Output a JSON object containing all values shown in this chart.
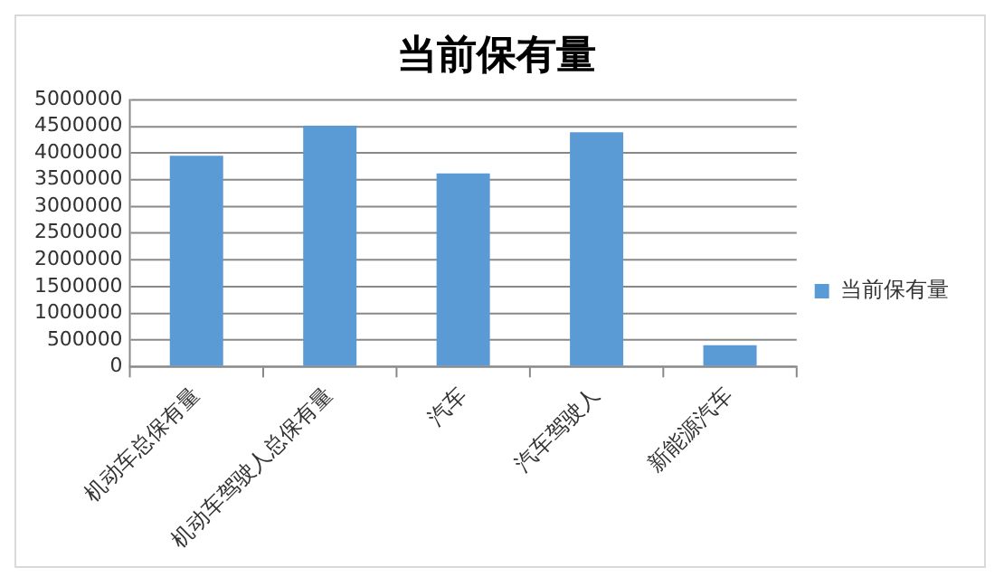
{
  "chart_data": {
    "type": "bar",
    "title": "当前保有量",
    "categories": [
      "机动车总保有量",
      "机动车驾驶人总保有量",
      "汽车",
      "汽车驾驶人",
      "新能源汽车"
    ],
    "series": [
      {
        "name": "当前保有量",
        "color": "#5b9bd5",
        "values": [
          3950000,
          4510000,
          3620000,
          4390000,
          400000
        ]
      }
    ],
    "ylim": [
      0,
      5000000
    ],
    "yticks": [
      0,
      500000,
      1000000,
      1500000,
      2000000,
      2500000,
      3000000,
      3500000,
      4000000,
      4500000,
      5000000
    ],
    "grid": "y",
    "legend": "right"
  }
}
